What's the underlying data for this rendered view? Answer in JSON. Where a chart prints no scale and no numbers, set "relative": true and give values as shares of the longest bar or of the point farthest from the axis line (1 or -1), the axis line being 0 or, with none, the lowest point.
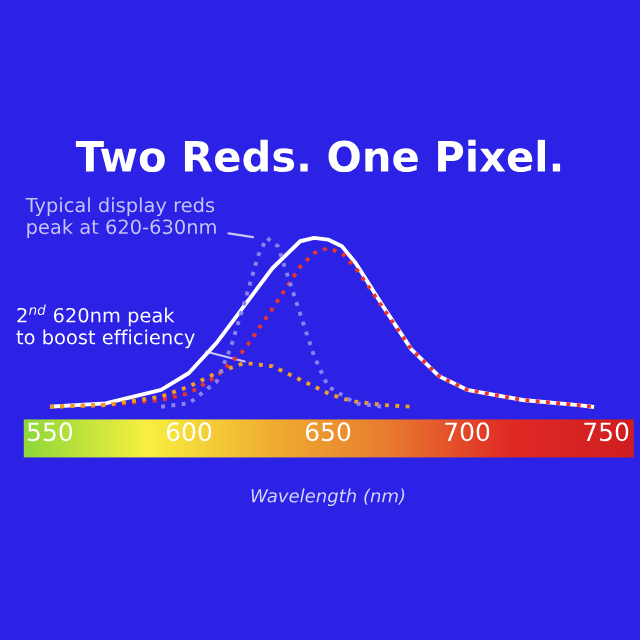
{
  "chart_data": {
    "type": "line",
    "title": "Two Reds. One Pixel.",
    "xlabel": "Wavelength (nm)",
    "relative": true,
    "xlim": [
      550,
      750
    ],
    "xticks": [
      550,
      600,
      650,
      700,
      750
    ],
    "series": [
      {
        "color": "#8d82ee",
        "line_style": "dotted",
        "x": [
          590,
          600,
          610,
          615,
          620,
          625,
          628,
          632,
          640,
          645,
          650,
          660,
          670
        ],
        "values": [
          0,
          0.02,
          0.15,
          0.35,
          0.62,
          0.9,
          1.0,
          0.95,
          0.55,
          0.3,
          0.12,
          0.02,
          0
        ]
      },
      {
        "color": "#f0a020",
        "line_style": "dotted",
        "x": [
          550,
          570,
          590,
          600,
          610,
          620,
          630,
          640,
          645,
          650,
          655,
          660,
          670,
          680
        ],
        "values": [
          0,
          0.01,
          0.06,
          0.12,
          0.2,
          0.26,
          0.24,
          0.16,
          0.12,
          0.08,
          0.05,
          0.03,
          0.01,
          0
        ]
      },
      {
        "color": "#e8352a",
        "line_style": "dotted",
        "x": [
          550,
          570,
          590,
          600,
          610,
          620,
          630,
          640,
          645,
          650,
          655,
          660,
          670,
          680,
          690,
          700,
          720,
          740,
          745
        ],
        "values": [
          0,
          0.01,
          0.04,
          0.08,
          0.18,
          0.34,
          0.58,
          0.83,
          0.91,
          0.94,
          0.91,
          0.82,
          0.58,
          0.34,
          0.18,
          0.1,
          0.04,
          0.01,
          0
        ]
      },
      {
        "color": "#ffffff",
        "line_style": "solid",
        "x": [
          550,
          570,
          590,
          600,
          610,
          620,
          630,
          640,
          645,
          650,
          655,
          660,
          670,
          680,
          690,
          700,
          720,
          740,
          745
        ],
        "values": [
          0,
          0.02,
          0.1,
          0.2,
          0.38,
          0.6,
          0.82,
          0.98,
          1.0,
          0.99,
          0.95,
          0.85,
          0.59,
          0.34,
          0.18,
          0.1,
          0.04,
          0.01,
          0
        ]
      }
    ],
    "annotations": [
      {
        "text": "Typical display reds\npeak at 620-630nm",
        "x": 625,
        "y": 1.0
      },
      {
        "text": "2$^{nd}$ 620nm peak\nto boost efficiency",
        "x": 622,
        "y": 0.26
      }
    ]
  }
}
